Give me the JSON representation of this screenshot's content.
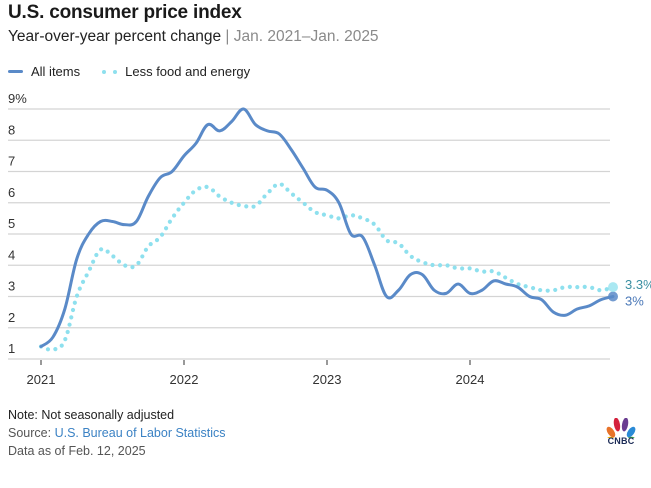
{
  "header": {
    "title": "U.S. consumer price index",
    "subtitle_main": "Year-over-year percent change",
    "subtitle_sep": " | ",
    "subtitle_range": "Jan. 2021–Jan. 2025"
  },
  "legend": [
    {
      "label": "All items",
      "style": "solid",
      "color": "#5a8ac8"
    },
    {
      "label": "Less food and energy",
      "style": "dotted",
      "color": "#8ee0ee"
    }
  ],
  "footer": {
    "note": "Note: Not seasonally adjusted",
    "source_label": "Source: ",
    "source_link": "U.S. Bureau of Labor Statistics",
    "dateline": "Data as of Feb. 12, 2025"
  },
  "logo": {
    "text": "CNBC",
    "icon": "cnbc-peacock-icon"
  },
  "chart_data": {
    "type": "line",
    "title": "U.S. consumer price index",
    "subtitle": "Year-over-year percent change | Jan. 2021–Jan. 2025",
    "xlabel": "",
    "ylabel": "",
    "ylim": [
      1,
      9
    ],
    "yticks": [
      1,
      2,
      3,
      4,
      5,
      6,
      7,
      8,
      9
    ],
    "ytick_labels": [
      "1",
      "2",
      "3",
      "4",
      "5",
      "6",
      "7",
      "8",
      "9%"
    ],
    "xticks": [
      "2021",
      "2022",
      "2023",
      "2024"
    ],
    "grid": true,
    "legend_position": "top-left",
    "x_start": "2021-01",
    "x_frequency": "monthly",
    "series": [
      {
        "name": "All items",
        "style": "solid",
        "color": "#5a8ac8",
        "values": [
          1.4,
          1.7,
          2.6,
          4.2,
          5.0,
          5.4,
          5.4,
          5.3,
          5.4,
          6.2,
          6.8,
          7.0,
          7.5,
          7.9,
          8.5,
          8.3,
          8.6,
          9.0,
          8.5,
          8.3,
          8.2,
          7.7,
          7.1,
          6.5,
          6.4,
          6.0,
          5.0,
          4.9,
          4.0,
          3.0,
          3.2,
          3.7,
          3.7,
          3.2,
          3.1,
          3.4,
          3.1,
          3.2,
          3.5,
          3.4,
          3.3,
          3.0,
          2.9,
          2.5,
          2.4,
          2.6,
          2.7,
          2.9,
          3.0
        ],
        "end_label": "3%"
      },
      {
        "name": "Less food and energy",
        "style": "dotted",
        "color": "#8ee0ee",
        "values": [
          1.4,
          1.3,
          1.6,
          3.0,
          3.8,
          4.5,
          4.3,
          4.0,
          4.0,
          4.6,
          4.9,
          5.5,
          6.0,
          6.4,
          6.5,
          6.2,
          6.0,
          5.9,
          5.9,
          6.3,
          6.6,
          6.3,
          6.0,
          5.7,
          5.6,
          5.5,
          5.6,
          5.5,
          5.3,
          4.8,
          4.7,
          4.3,
          4.1,
          4.0,
          4.0,
          3.9,
          3.9,
          3.8,
          3.8,
          3.6,
          3.4,
          3.3,
          3.2,
          3.2,
          3.3,
          3.3,
          3.3,
          3.2,
          3.3
        ],
        "end_label": "3.3%"
      }
    ]
  }
}
